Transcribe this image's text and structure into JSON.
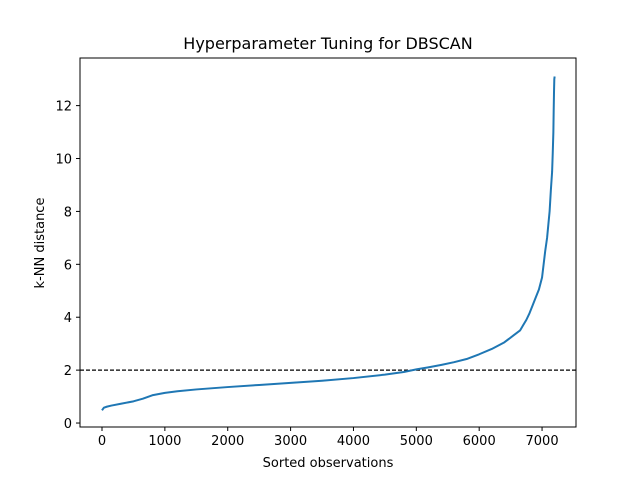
{
  "chart_data": {
    "type": "line",
    "title": "Hyperparameter Tuning for DBSCAN",
    "xlabel": "Sorted observations",
    "ylabel": "k-NN distance",
    "xlim": [
      -350,
      7540
    ],
    "ylim": [
      -0.15,
      13.8
    ],
    "xticks": [
      0,
      1000,
      2000,
      3000,
      4000,
      5000,
      6000,
      7000
    ],
    "yticks": [
      0,
      2,
      4,
      6,
      8,
      10,
      12
    ],
    "grid": false,
    "series": [
      {
        "color": "#1f77b4",
        "x": [
          0,
          30,
          80,
          150,
          300,
          500,
          650,
          800,
          1000,
          1200,
          1500,
          2000,
          2500,
          3000,
          3500,
          4000,
          4500,
          4800,
          5000,
          5200,
          5400,
          5600,
          5800,
          6000,
          6200,
          6400,
          6550,
          6650,
          6700,
          6750,
          6800,
          6850,
          6900,
          6950,
          7000,
          7050,
          7080,
          7100,
          7120,
          7140,
          7160,
          7170,
          7180,
          7185,
          7190,
          7195,
          7200
        ],
        "y": [
          0.48,
          0.58,
          0.62,
          0.66,
          0.73,
          0.82,
          0.92,
          1.05,
          1.14,
          1.2,
          1.27,
          1.36,
          1.44,
          1.52,
          1.6,
          1.7,
          1.83,
          1.93,
          2.03,
          2.11,
          2.2,
          2.3,
          2.42,
          2.6,
          2.8,
          3.05,
          3.32,
          3.5,
          3.7,
          3.9,
          4.15,
          4.45,
          4.75,
          5.05,
          5.5,
          6.5,
          7.0,
          7.5,
          8.0,
          8.8,
          9.5,
          10.2,
          11.0,
          11.8,
          12.5,
          13.0,
          13.1
        ]
      }
    ],
    "hlines": [
      {
        "y": 2,
        "color": "#000000",
        "style": "dashed"
      }
    ]
  }
}
